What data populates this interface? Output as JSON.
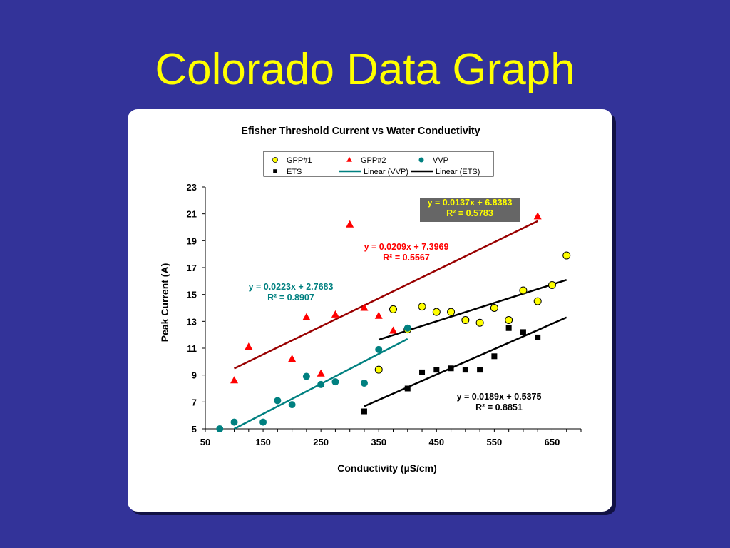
{
  "slide": {
    "title": "Colorado Data Graph"
  },
  "colors": {
    "background": "#333399",
    "title": "#ffff00"
  },
  "chart_data": {
    "type": "scatter",
    "title": "Efisher Threshold Current vs Water Conductivity",
    "xlabel": "Conductivity (µS/cm)",
    "ylabel": "Peak Current (A)",
    "xlim": [
      50,
      700
    ],
    "ylim": [
      5,
      23
    ],
    "xticks": [
      50,
      150,
      250,
      350,
      450,
      550,
      650
    ],
    "yticks": [
      5,
      7,
      9,
      11,
      13,
      15,
      17,
      19,
      21,
      23
    ],
    "grid": false,
    "legend_position": "top",
    "series": [
      {
        "name": "GPP#1",
        "marker": "circle",
        "color": "#ffff00",
        "stroke": "#000000",
        "points": [
          [
            350,
            9.4
          ],
          [
            375,
            13.9
          ],
          [
            400,
            12.4
          ],
          [
            425,
            14.1
          ],
          [
            450,
            13.7
          ],
          [
            475,
            13.7
          ],
          [
            500,
            13.1
          ],
          [
            525,
            12.9
          ],
          [
            550,
            14.0
          ],
          [
            575,
            13.1
          ],
          [
            600,
            15.3
          ],
          [
            625,
            14.5
          ],
          [
            650,
            15.7
          ],
          [
            675,
            17.9
          ]
        ]
      },
      {
        "name": "GPP#2",
        "marker": "triangle",
        "color": "#ff0000",
        "points": [
          [
            100,
            8.6
          ],
          [
            125,
            11.1
          ],
          [
            200,
            10.2
          ],
          [
            225,
            13.3
          ],
          [
            250,
            9.1
          ],
          [
            275,
            13.5
          ],
          [
            300,
            20.2
          ],
          [
            325,
            14.0
          ],
          [
            350,
            13.4
          ],
          [
            375,
            12.3
          ],
          [
            625,
            20.8
          ]
        ]
      },
      {
        "name": "VVP",
        "marker": "dot",
        "color": "#008080",
        "points": [
          [
            75,
            5.0
          ],
          [
            100,
            5.5
          ],
          [
            150,
            5.5
          ],
          [
            175,
            7.1
          ],
          [
            200,
            6.8
          ],
          [
            225,
            8.9
          ],
          [
            250,
            8.3
          ],
          [
            275,
            8.5
          ],
          [
            325,
            8.4
          ],
          [
            350,
            10.9
          ],
          [
            400,
            12.5
          ]
        ]
      },
      {
        "name": "ETS",
        "marker": "square",
        "color": "#000000",
        "points": [
          [
            325,
            6.3
          ],
          [
            400,
            8.0
          ],
          [
            425,
            9.2
          ],
          [
            450,
            9.4
          ],
          [
            475,
            9.5
          ],
          [
            500,
            9.4
          ],
          [
            525,
            9.4
          ],
          [
            550,
            10.4
          ],
          [
            575,
            12.5
          ],
          [
            600,
            12.2
          ],
          [
            625,
            11.8
          ]
        ]
      }
    ],
    "trendlines": [
      {
        "name": "Linear (VVP)",
        "color": "#008080",
        "in_legend": true,
        "x_range": [
          100,
          400
        ],
        "slope": 0.0223,
        "intercept": 2.7683,
        "equation": "y = 0.0223x + 2.7683",
        "r2": "R² = 0.8907",
        "label_color": "#008080"
      },
      {
        "name": "Linear (ETS)",
        "color": "#000000",
        "in_legend": true,
        "x_range": [
          325,
          675
        ],
        "slope": 0.0189,
        "intercept": 0.5375,
        "equation": "y = 0.0189x + 0.5375",
        "r2": "R² = 0.8851",
        "label_color": "#000000"
      },
      {
        "name": "",
        "color": "#990000",
        "in_legend": false,
        "x_range": [
          100,
          625
        ],
        "slope": 0.0209,
        "intercept": 7.3969,
        "equation": "y = 0.0209x + 7.3969",
        "r2": "R² = 0.5567",
        "label_color": "#ff0000"
      },
      {
        "name": "",
        "color": "#000000",
        "in_legend": false,
        "x_range": [
          350,
          675
        ],
        "slope": 0.0137,
        "intercept": 6.8383,
        "equation": "y = 0.0137x + 6.8383",
        "r2": "R² = 0.5783",
        "label_color": "#ffff00",
        "label_bg": "#666666"
      }
    ]
  }
}
